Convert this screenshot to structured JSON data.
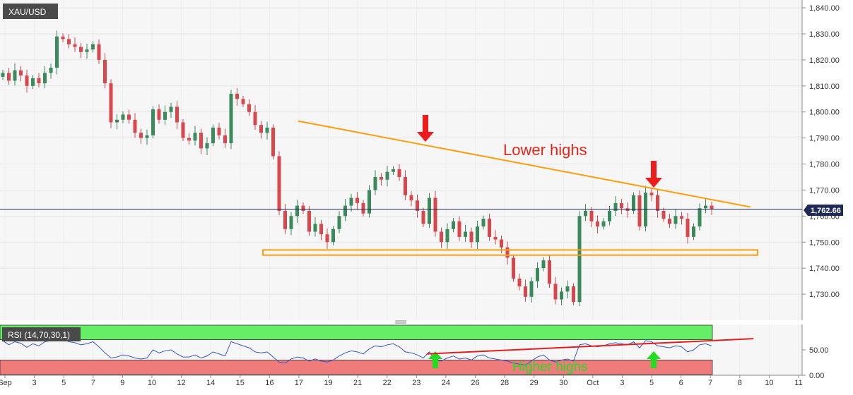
{
  "chart_data": {
    "type": "candlestick",
    "symbol": "XAU/USD",
    "current_price": 1762.66,
    "current_price_label": "1,762.66",
    "ylim": [
      1720,
      1843
    ],
    "y_ticks": [
      {
        "value": 1730,
        "label": "1,730.00"
      },
      {
        "value": 1740,
        "label": "1,740.00"
      },
      {
        "value": 1750,
        "label": "1,750.00"
      },
      {
        "value": 1760,
        "label": "1,760.00"
      },
      {
        "value": 1770,
        "label": "1,770.00"
      },
      {
        "value": 1780,
        "label": "1,780.00"
      },
      {
        "value": 1790,
        "label": "1,790.00"
      },
      {
        "value": 1800,
        "label": "1,800.00"
      },
      {
        "value": 1810,
        "label": "1,810.00"
      },
      {
        "value": 1820,
        "label": "1,820.00"
      },
      {
        "value": 1830,
        "label": "1,830.00"
      },
      {
        "value": 1840,
        "label": "1,840.00"
      }
    ],
    "x_ticks": [
      "Sep",
      "3",
      "5",
      "7",
      "9",
      "10",
      "12",
      "14",
      "15",
      "16",
      "17",
      "19",
      "21",
      "22",
      "23",
      "24",
      "26",
      "28",
      "29",
      "30",
      "Oct",
      "3",
      "5",
      "6",
      "7",
      "8",
      "10",
      "11"
    ],
    "close_series": [
      1815,
      1812,
      1816,
      1814,
      1810,
      1813,
      1811,
      1815,
      1817,
      1829,
      1828,
      1826,
      1825,
      1823,
      1824,
      1826,
      1820,
      1811,
      1796,
      1797,
      1799,
      1797,
      1792,
      1790,
      1791,
      1801,
      1797,
      1800,
      1802,
      1796,
      1790,
      1789,
      1792,
      1786,
      1788,
      1794,
      1791,
      1788,
      1807,
      1805,
      1803,
      1800,
      1795,
      1792,
      1794,
      1783,
      1762,
      1755,
      1760,
      1764,
      1762,
      1754,
      1757,
      1753,
      1750,
      1755,
      1760,
      1764,
      1767,
      1765,
      1761,
      1770,
      1775,
      1774,
      1777,
      1778,
      1775,
      1768,
      1766,
      1762,
      1757,
      1767,
      1754,
      1750,
      1755,
      1758,
      1752,
      1754,
      1750,
      1756,
      1759,
      1752,
      1751,
      1748,
      1744,
      1736,
      1733,
      1729,
      1735,
      1740,
      1743,
      1734,
      1728,
      1731,
      1733,
      1727,
      1760,
      1762,
      1758,
      1756,
      1758,
      1762,
      1765,
      1763,
      1762,
      1768,
      1756,
      1769,
      1768,
      1762,
      1759,
      1757,
      1760,
      1759,
      1752,
      1756,
      1763,
      1764,
      1762.66
    ],
    "support_zone": [
      1745,
      1747
    ],
    "resistance_line": {
      "from": {
        "bar": 56,
        "price": 1796.5
      },
      "to": {
        "bar": 120,
        "price": 1763.5
      }
    },
    "annotations": {
      "lower_highs": "Lower highs",
      "higher_highs": "Higher highs"
    },
    "rsi": {
      "label": "RSI (14,70,30,1)",
      "overbought": 70,
      "oversold": 30,
      "ylim": [
        0,
        100
      ],
      "y_ticks": [
        {
          "value": 0,
          "label": "0.00"
        },
        {
          "value": 50,
          "label": "50.00"
        }
      ],
      "current_value": 58,
      "values": [
        68,
        60,
        66,
        63,
        55,
        62,
        58,
        66,
        68,
        78,
        72,
        66,
        64,
        60,
        62,
        66,
        56,
        44,
        34,
        36,
        40,
        38,
        34,
        32,
        34,
        50,
        44,
        48,
        50,
        42,
        36,
        36,
        40,
        34,
        38,
        46,
        42,
        38,
        66,
        62,
        58,
        54,
        46,
        44,
        46,
        36,
        26,
        24,
        32,
        36,
        34,
        28,
        32,
        28,
        26,
        30,
        38,
        44,
        48,
        46,
        42,
        52,
        58,
        56,
        60,
        62,
        56,
        46,
        44,
        40,
        34,
        46,
        30,
        28,
        34,
        38,
        32,
        34,
        30,
        38,
        40,
        34,
        32,
        30,
        28,
        24,
        22,
        20,
        28,
        36,
        40,
        30,
        26,
        30,
        32,
        28,
        60,
        62,
        58,
        56,
        58,
        62,
        64,
        62,
        60,
        66,
        54,
        68,
        66,
        58,
        56,
        54,
        58,
        56,
        46,
        50,
        60,
        62,
        58
      ]
    },
    "grid": true
  },
  "colors": {
    "bull": "#3a8a5c",
    "bear": "#d8474b",
    "trendline": "#ff9e0d",
    "annotation_text": "#e8271c",
    "arrow_down": "#ee1b1b",
    "arrow_up": "#22dd22",
    "rsi_line": "#3a55c8",
    "rsi_divergence": "#e02020",
    "overbought_fill": "#66ee66",
    "oversold_fill": "#f07b7b",
    "price_line": "#1f2a56"
  }
}
